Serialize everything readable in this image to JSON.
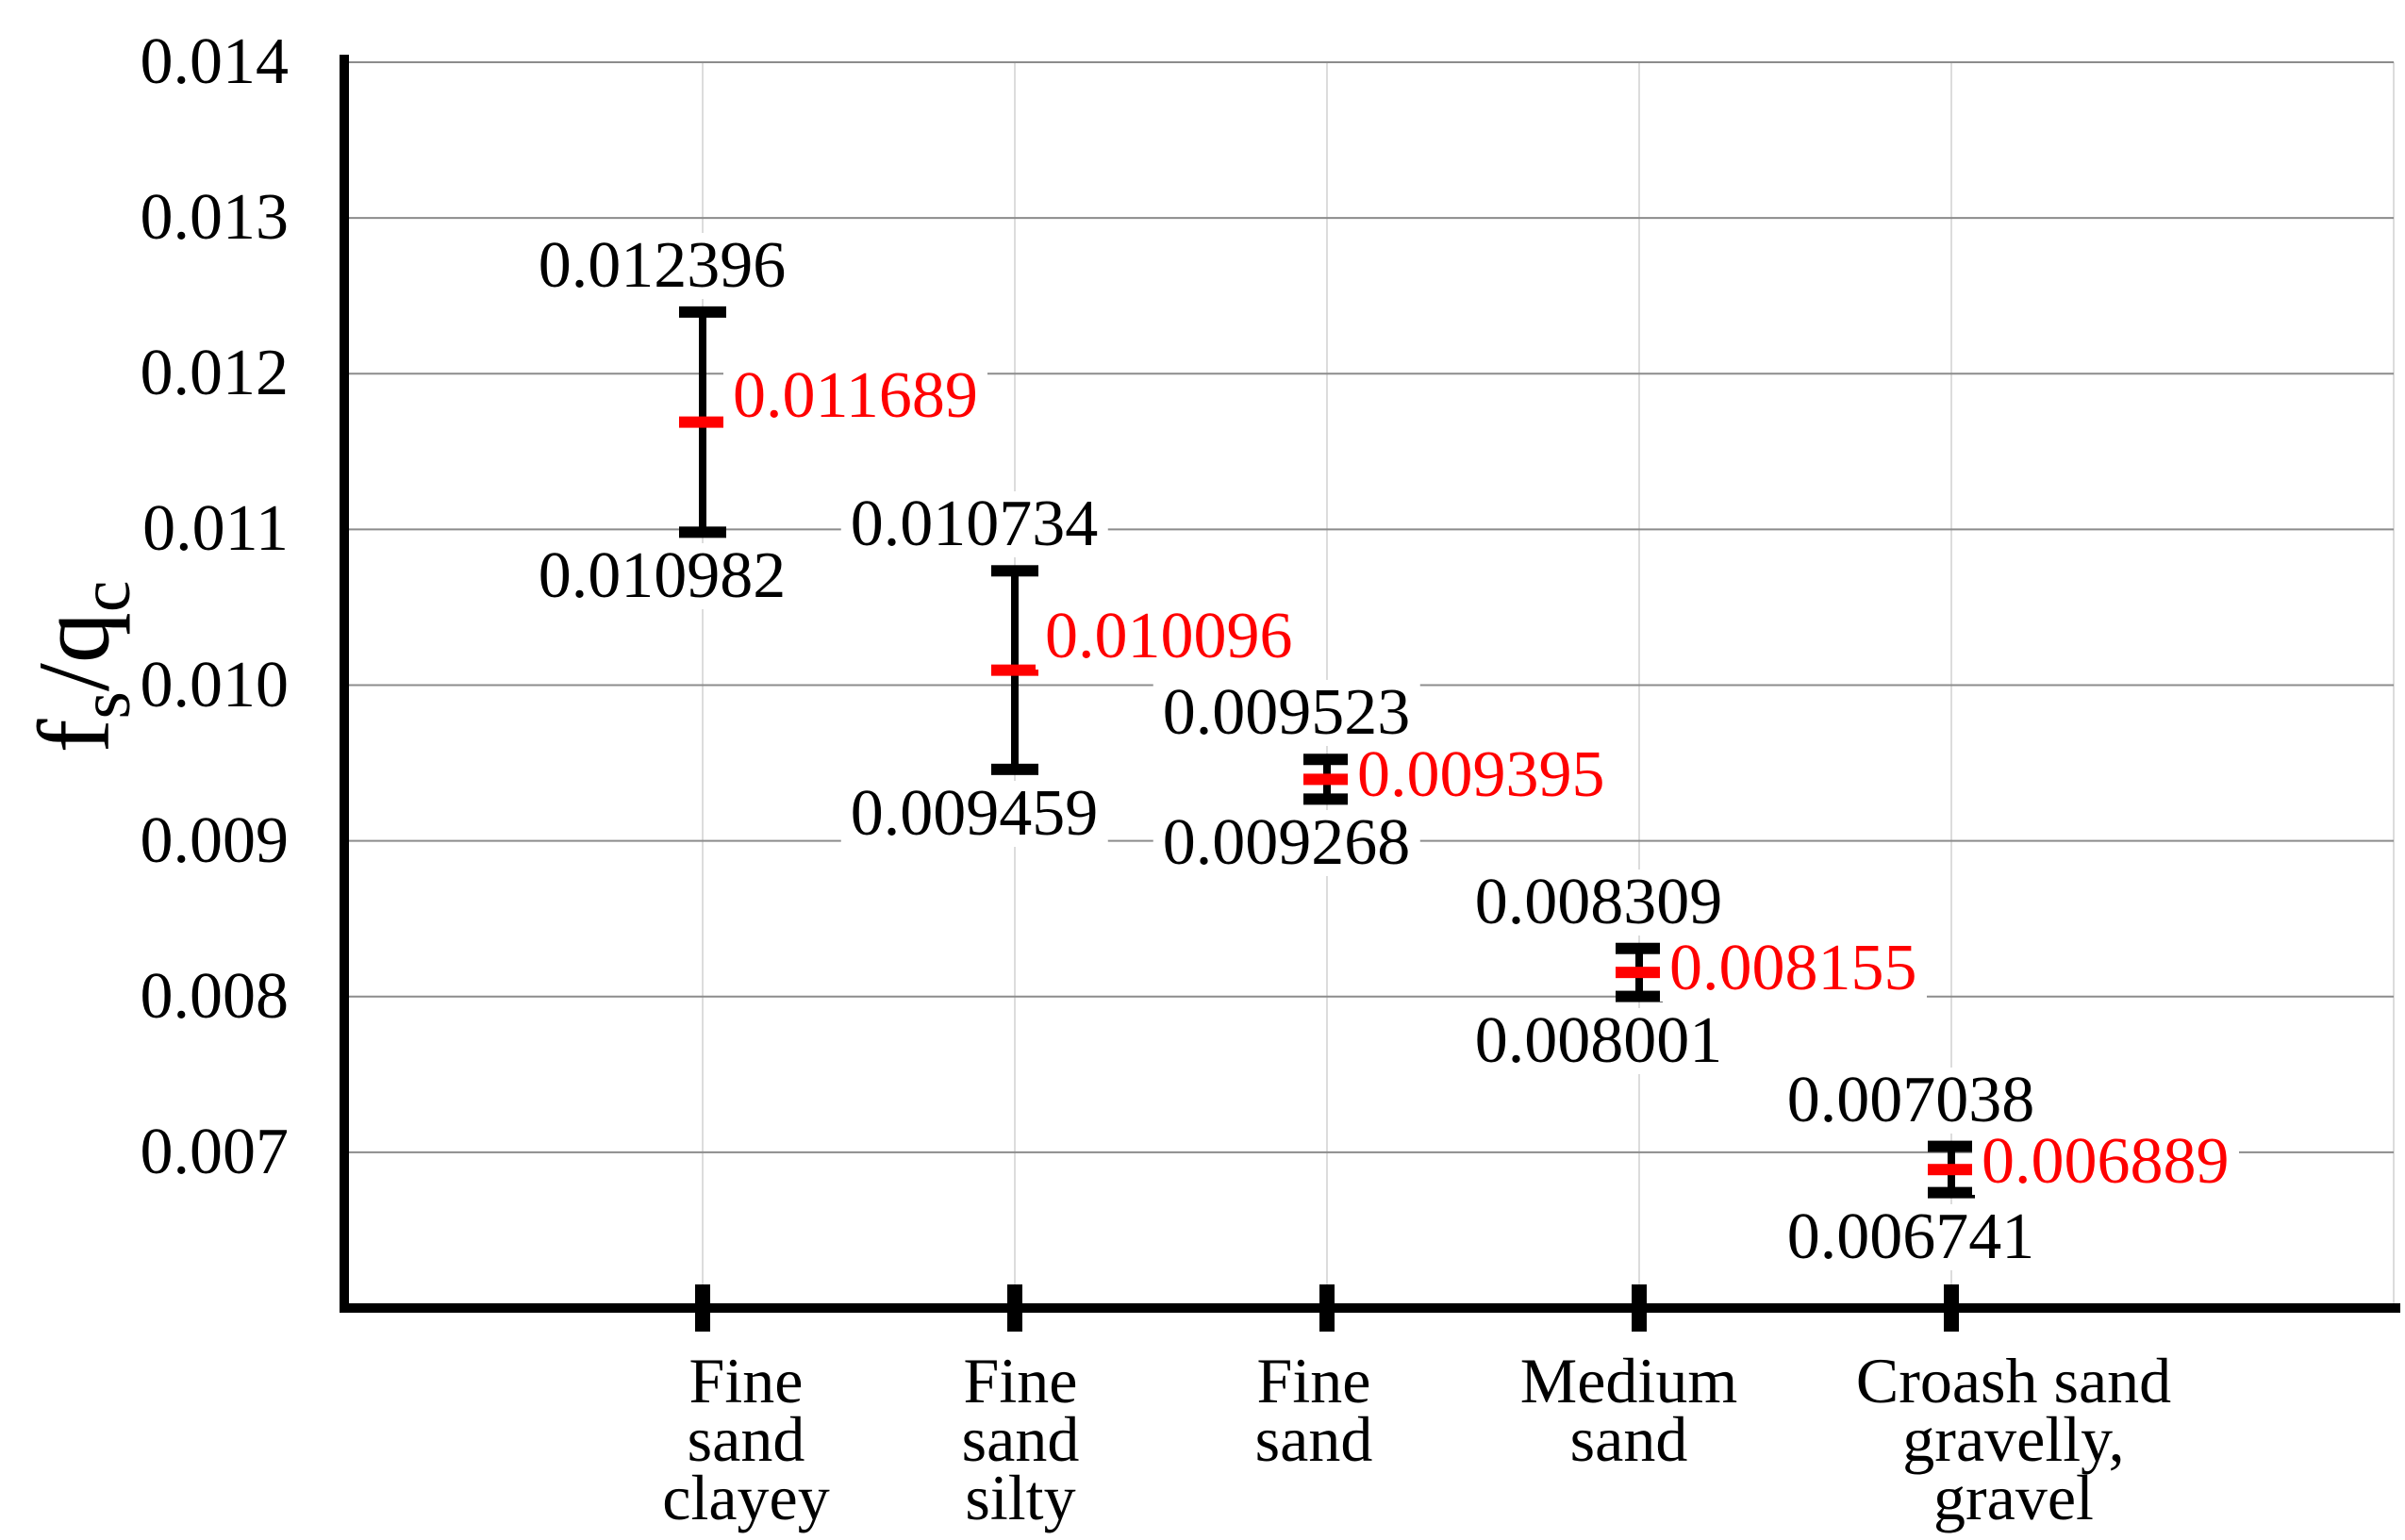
{
  "chart_data": {
    "type": "scatter",
    "ylabel": [
      {
        "text": "f"
      },
      {
        "text": "s",
        "sub": true
      },
      {
        "text": "/"
      },
      {
        "text": "q"
      },
      {
        "text": "c",
        "sub": true
      }
    ],
    "categories": [
      "Fine\nsand\nclayey",
      "Fine\nsand\nsilty",
      "Fine\nsand",
      "Medium\nsand",
      "Croash sand\ngravelly,\ngravel"
    ],
    "series": [
      {
        "values": [
          0.011689,
          0.010096,
          0.009395,
          0.008155,
          0.006889
        ],
        "upper": [
          0.012396,
          0.010734,
          0.009523,
          0.008309,
          0.007038
        ],
        "lower": [
          0.010982,
          0.009459,
          0.009268,
          0.008001,
          0.006741
        ]
      }
    ],
    "ylim": [
      0.006,
      0.014
    ],
    "yticks": [
      "0.007",
      "0.008",
      "0.009",
      "0.010",
      "0.011",
      "0.012",
      "0.013",
      "0.014"
    ],
    "grid": true,
    "colors": {
      "range": "#000000",
      "mean": "#ff0000",
      "grid_horizontal": "#8c8c8c",
      "grid_vertical": "#dcdcdc"
    }
  }
}
